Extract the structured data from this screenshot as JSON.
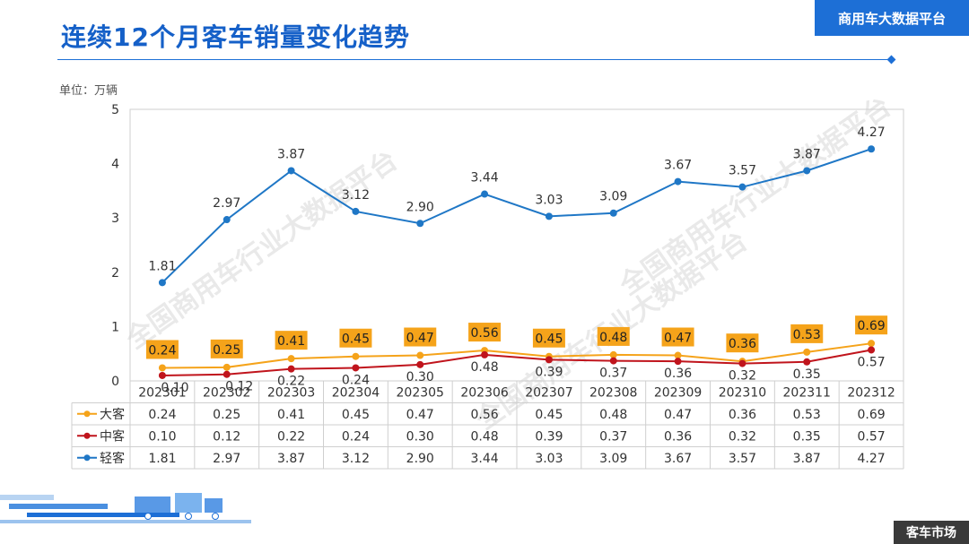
{
  "header": {
    "title": "连续12个月客车销量变化趋势",
    "brand": "商用车大数据平台",
    "footer_tag": "客车市场"
  },
  "colors": {
    "accent": "#1d6fd6",
    "series_large": "#f5a31a",
    "series_medium": "#c0141c",
    "series_light": "#1f77c6",
    "label_bg": "#f5a31a"
  },
  "chart_data": {
    "type": "line",
    "unit_label": "单位：万辆",
    "categories": [
      "202301",
      "202302",
      "202303",
      "202304",
      "202305",
      "202306",
      "202307",
      "202308",
      "202309",
      "202310",
      "202311",
      "202312"
    ],
    "ylim": [
      0,
      5
    ],
    "yticks": [
      0,
      1,
      2,
      3,
      4,
      5
    ],
    "grid": false,
    "legend": "data-table",
    "series": [
      {
        "name": "大客",
        "color": "#f5a31a",
        "values": [
          0.24,
          0.25,
          0.41,
          0.45,
          0.47,
          0.56,
          0.45,
          0.48,
          0.47,
          0.36,
          0.53,
          0.69
        ]
      },
      {
        "name": "中客",
        "color": "#c0141c",
        "values": [
          0.1,
          0.12,
          0.22,
          0.24,
          0.3,
          0.48,
          0.39,
          0.37,
          0.36,
          0.32,
          0.35,
          0.57
        ]
      },
      {
        "name": "轻客",
        "color": "#1f77c6",
        "values": [
          1.81,
          2.97,
          3.87,
          3.12,
          2.9,
          3.44,
          3.03,
          3.09,
          3.67,
          3.57,
          3.87,
          4.27
        ]
      }
    ]
  },
  "watermarks": [
    "全国商用车行业大数据平台",
    "全国商用车行业大数据平台",
    "全国商用车行业大数据平台"
  ]
}
